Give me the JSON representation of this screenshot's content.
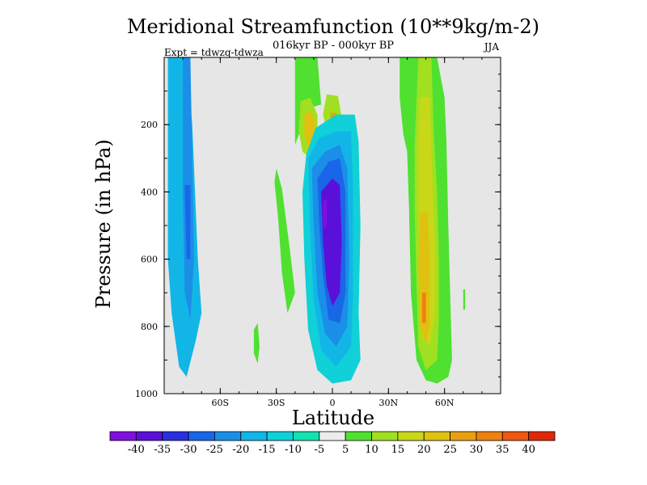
{
  "chart_data": {
    "type": "heatmap",
    "title": "Meridional Streamfunction (10**9kg/m-2)",
    "subtitle": "016kyr BP - 000kyr BP",
    "experiment": "Expt = tdwzq-tdwza",
    "season": "JJA",
    "xlabel": "Latitude",
    "ylabel": "Pressure (in hPa)",
    "xlim": [
      -90,
      90
    ],
    "ylim": [
      1000,
      0
    ],
    "x_ticks": [
      {
        "value": -60,
        "label": "60S"
      },
      {
        "value": -30,
        "label": "30S"
      },
      {
        "value": 0,
        "label": "0"
      },
      {
        "value": 30,
        "label": "30N"
      },
      {
        "value": 60,
        "label": "60N"
      }
    ],
    "y_ticks": [
      {
        "value": 200,
        "label": "200"
      },
      {
        "value": 400,
        "label": "400"
      },
      {
        "value": 600,
        "label": "600"
      },
      {
        "value": 800,
        "label": "800"
      },
      {
        "value": 1000,
        "label": "1000"
      }
    ],
    "missing_color": "#e6e6e6",
    "colorbar": {
      "colors": [
        "#8010e0",
        "#5a10d8",
        "#2a30e0",
        "#1a66e8",
        "#1b8ee8",
        "#12b6e6",
        "#10d0d8",
        "#14e0b0",
        "#ececec",
        "#50e030",
        "#a0e020",
        "#c8d818",
        "#e0c010",
        "#e8a010",
        "#ee8010",
        "#ee5810",
        "#e02808"
      ],
      "labels": [
        "-40",
        "-35",
        "-30",
        "-25",
        "-20",
        "-15",
        "-10",
        "-5",
        "5",
        "10",
        "15",
        "20",
        "25",
        "30",
        "35",
        "40"
      ]
    },
    "regions": [
      {
        "category": 5,
        "polygon": [
          [
            -88,
            0
          ],
          [
            -78,
            0
          ],
          [
            -75,
            200
          ],
          [
            -72,
            600
          ],
          [
            -70,
            760
          ],
          [
            -73,
            840
          ],
          [
            -78,
            950
          ],
          [
            -82,
            920
          ],
          [
            -86,
            760
          ],
          [
            -88,
            600
          ]
        ]
      },
      {
        "category": 4,
        "polygon": [
          [
            -80,
            0
          ],
          [
            -76,
            0
          ],
          [
            -75,
            300
          ],
          [
            -74,
            600
          ],
          [
            -76,
            780
          ],
          [
            -79,
            700
          ],
          [
            -80,
            400
          ]
        ]
      },
      {
        "category": 3,
        "polygon": [
          [
            -79,
            380
          ],
          [
            -76,
            380
          ],
          [
            -76,
            600
          ],
          [
            -78,
            600
          ]
        ]
      },
      {
        "category": 9,
        "polygon": [
          [
            -20,
            0
          ],
          [
            -8,
            0
          ],
          [
            -6,
            140
          ],
          [
            -12,
            150
          ],
          [
            -16,
            200
          ],
          [
            -20,
            260
          ]
        ]
      },
      {
        "category": 9,
        "polygon": [
          [
            -30,
            330
          ],
          [
            -27,
            390
          ],
          [
            -23,
            560
          ],
          [
            -20,
            700
          ],
          [
            -24,
            760
          ],
          [
            -27,
            640
          ],
          [
            -29,
            480
          ],
          [
            -31,
            370
          ]
        ]
      },
      {
        "category": 9,
        "polygon": [
          [
            -40,
            790
          ],
          [
            -39,
            860
          ],
          [
            -40,
            910
          ],
          [
            -42,
            880
          ],
          [
            -42,
            810
          ]
        ]
      },
      {
        "category": 10,
        "polygon": [
          [
            -17,
            130
          ],
          [
            -12,
            120
          ],
          [
            -8,
            170
          ],
          [
            -8,
            250
          ],
          [
            -12,
            300
          ],
          [
            -16,
            280
          ],
          [
            -18,
            220
          ]
        ]
      },
      {
        "category": 12,
        "polygon": [
          [
            -15,
            170
          ],
          [
            -11,
            160
          ],
          [
            -9,
            200
          ],
          [
            -10,
            260
          ],
          [
            -13,
            265
          ],
          [
            -15,
            230
          ]
        ]
      },
      {
        "category": 10,
        "polygon": [
          [
            -3,
            110
          ],
          [
            3,
            115
          ],
          [
            5,
            180
          ],
          [
            2,
            230
          ],
          [
            -3,
            220
          ],
          [
            -5,
            170
          ]
        ]
      },
      {
        "category": 13,
        "polygon": [
          [
            -1,
            165
          ],
          [
            2,
            165
          ],
          [
            2,
            195
          ],
          [
            -1,
            195
          ]
        ]
      },
      {
        "category": 6,
        "polygon": [
          [
            -14,
            290
          ],
          [
            -9,
            210
          ],
          [
            2,
            170
          ],
          [
            12,
            170
          ],
          [
            14,
            250
          ],
          [
            15,
            500
          ],
          [
            14,
            760
          ],
          [
            15,
            900
          ],
          [
            10,
            960
          ],
          [
            0,
            970
          ],
          [
            -8,
            930
          ],
          [
            -13,
            810
          ],
          [
            -15,
            600
          ],
          [
            -16,
            400
          ]
        ]
      },
      {
        "category": 5,
        "polygon": [
          [
            -13,
            300
          ],
          [
            -7,
            240
          ],
          [
            2,
            220
          ],
          [
            10,
            220
          ],
          [
            11,
            400
          ],
          [
            11,
            700
          ],
          [
            10,
            860
          ],
          [
            2,
            920
          ],
          [
            -6,
            870
          ],
          [
            -10,
            720
          ],
          [
            -12,
            500
          ]
        ]
      },
      {
        "category": 4,
        "polygon": [
          [
            -11,
            330
          ],
          [
            -4,
            280
          ],
          [
            4,
            260
          ],
          [
            8,
            330
          ],
          [
            9,
            600
          ],
          [
            8,
            800
          ],
          [
            2,
            860
          ],
          [
            -4,
            820
          ],
          [
            -8,
            700
          ],
          [
            -10,
            500
          ]
        ]
      },
      {
        "category": 3,
        "polygon": [
          [
            -8,
            360
          ],
          [
            -2,
            310
          ],
          [
            4,
            300
          ],
          [
            7,
            400
          ],
          [
            7,
            700
          ],
          [
            4,
            790
          ],
          [
            -2,
            780
          ],
          [
            -5,
            650
          ],
          [
            -7,
            500
          ]
        ]
      },
      {
        "category": 1,
        "polygon": [
          [
            -6,
            400
          ],
          [
            0,
            360
          ],
          [
            4,
            380
          ],
          [
            5,
            550
          ],
          [
            4,
            700
          ],
          [
            0,
            740
          ],
          [
            -3,
            680
          ],
          [
            -5,
            550
          ]
        ]
      },
      {
        "category": 0,
        "polygon": [
          [
            -5,
            430
          ],
          [
            -3,
            420
          ],
          [
            -3,
            500
          ],
          [
            -5,
            510
          ]
        ]
      },
      {
        "category": 9,
        "polygon": [
          [
            36,
            0
          ],
          [
            56,
            0
          ],
          [
            60,
            120
          ],
          [
            61,
            250
          ],
          [
            62,
            500
          ],
          [
            63,
            700
          ],
          [
            64,
            900
          ],
          [
            62,
            950
          ],
          [
            56,
            970
          ],
          [
            50,
            960
          ],
          [
            45,
            900
          ],
          [
            42,
            700
          ],
          [
            41,
            450
          ],
          [
            40,
            280
          ],
          [
            38,
            230
          ],
          [
            36,
            120
          ]
        ]
      },
      {
        "category": 10,
        "polygon": [
          [
            46,
            0
          ],
          [
            53,
            0
          ],
          [
            54,
            200
          ],
          [
            56,
            400
          ],
          [
            57,
            600
          ],
          [
            57,
            780
          ],
          [
            56,
            900
          ],
          [
            50,
            930
          ],
          [
            46,
            860
          ],
          [
            45,
            680
          ],
          [
            44,
            460
          ],
          [
            44,
            260
          ]
        ]
      },
      {
        "category": 11,
        "polygon": [
          [
            47,
            120
          ],
          [
            52,
            120
          ],
          [
            53,
            300
          ],
          [
            55,
            560
          ],
          [
            55,
            760
          ],
          [
            52,
            860
          ],
          [
            48,
            830
          ],
          [
            47,
            660
          ],
          [
            46,
            430
          ],
          [
            46,
            240
          ]
        ]
      },
      {
        "category": 12,
        "polygon": [
          [
            47,
            460
          ],
          [
            51,
            460
          ],
          [
            52,
            620
          ],
          [
            52,
            800
          ],
          [
            50,
            850
          ],
          [
            47,
            800
          ],
          [
            46,
            620
          ]
        ]
      },
      {
        "category": 14,
        "polygon": [
          [
            48,
            700
          ],
          [
            50,
            700
          ],
          [
            50,
            790
          ],
          [
            48,
            790
          ]
        ]
      },
      {
        "category": 9,
        "polygon": [
          [
            70,
            690
          ],
          [
            71,
            690
          ],
          [
            71,
            750
          ],
          [
            70,
            750
          ]
        ]
      }
    ]
  }
}
